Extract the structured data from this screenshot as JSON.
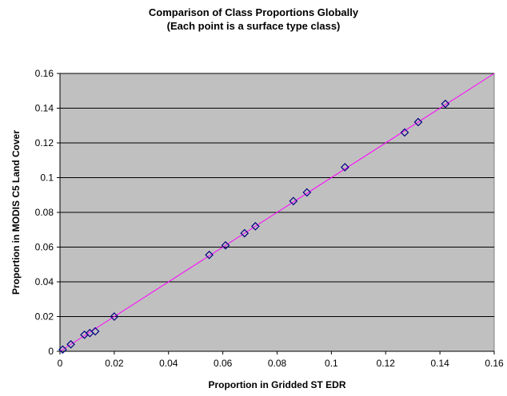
{
  "chart_data": {
    "type": "scatter",
    "title": "Comparison of Class Proportions Globally",
    "subtitle": "(Each point is a surface type class)",
    "xlabel": "Proportion in Gridded ST EDR",
    "ylabel": "Proportion in MODIS C5 Land Cover",
    "xlim": [
      0,
      0.16
    ],
    "ylim": [
      0,
      0.16
    ],
    "x_ticks": [
      "0",
      "0.02",
      "0.04",
      "0.06",
      "0.08",
      "0.1",
      "0.12",
      "0.14",
      "0.16"
    ],
    "y_ticks": [
      "0",
      "0.02",
      "0.04",
      "0.06",
      "0.08",
      "0.1",
      "0.12",
      "0.14",
      "0.16"
    ],
    "grid": "horizontal",
    "legend": "none",
    "colors": {
      "plot_background": "#c0c0c0",
      "marker_edge": "#000080",
      "line": "#ff00ff"
    },
    "series": [
      {
        "marker": "diamond",
        "points": [
          [
            0.001,
            0.001
          ],
          [
            0.004,
            0.004
          ],
          [
            0.009,
            0.0095
          ],
          [
            0.011,
            0.0105
          ],
          [
            0.013,
            0.0115
          ],
          [
            0.02,
            0.02
          ],
          [
            0.055,
            0.0555
          ],
          [
            0.061,
            0.061
          ],
          [
            0.068,
            0.068
          ],
          [
            0.072,
            0.072
          ],
          [
            0.086,
            0.0865
          ],
          [
            0.091,
            0.0915
          ],
          [
            0.105,
            0.106
          ],
          [
            0.127,
            0.126
          ],
          [
            0.132,
            0.132
          ],
          [
            0.142,
            0.1425
          ]
        ]
      }
    ],
    "reference_line": {
      "from": [
        0,
        0
      ],
      "to": [
        0.16,
        0.16
      ]
    }
  }
}
